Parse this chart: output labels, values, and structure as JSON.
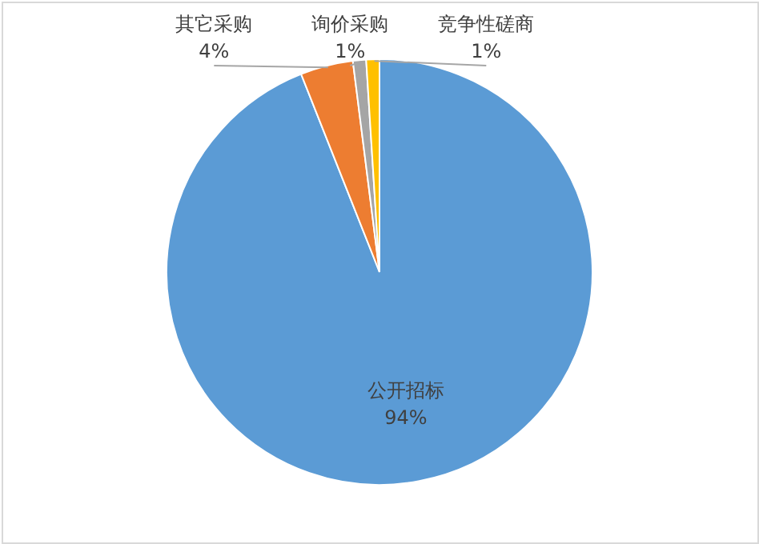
{
  "chart_data": {
    "type": "pie",
    "categories": [
      "公开招标",
      "其它采购",
      "询价采购",
      "竞争性磋商"
    ],
    "values": [
      94,
      4,
      1,
      1
    ],
    "colors": [
      "#5b9bd5",
      "#ed7d31",
      "#a5a5a5",
      "#ffc000"
    ],
    "value_labels": [
      "94%",
      "4%",
      "1%",
      "1%"
    ]
  }
}
